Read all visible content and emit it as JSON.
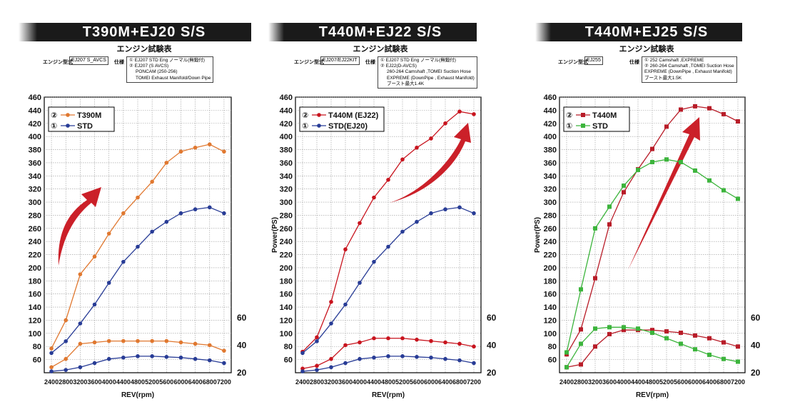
{
  "chart_data": [
    {
      "type": "line",
      "title": "T390M+EJ20 S/S",
      "subtitle": "エンジン試験表",
      "engine_label": "エンジン型式",
      "engine_value": "EJ207 S_AVCS",
      "spec_label": "仕様",
      "spec_lines": [
        "① EJ207 STD Eng ノーマル(無鍛付)",
        "② EJ207 (S AVCS)",
        "PONCAM (250-256)",
        "TOMEI Exhaust Manifold/Down Pipe"
      ],
      "xlabel": "REV(rpm)",
      "ylabel": "",
      "x": [
        2400,
        2800,
        3200,
        3600,
        4000,
        4400,
        4800,
        5200,
        5600,
        6000,
        6400,
        6800,
        7200
      ],
      "x_ticks": [
        "2400",
        "2800",
        "3200",
        "3600",
        "4000",
        "4400",
        "4800",
        "5200",
        "5600",
        "6000",
        "6400",
        "6800",
        "7200"
      ],
      "ylim": [
        40,
        460
      ],
      "y_ticks": [
        "460",
        "440",
        "420",
        "400",
        "380",
        "360",
        "340",
        "320",
        "300",
        "280",
        "260",
        "240",
        "220",
        "200",
        "180",
        "160",
        "140",
        "120",
        "100",
        "80",
        "60"
      ],
      "y2lim": [
        20,
        220
      ],
      "y2_ticks": [
        "60",
        "40",
        "20"
      ],
      "marker": "circle",
      "arrow_color": "#c8141e",
      "legend": [
        {
          "num": "②",
          "name": "T390M",
          "color": "#e07830"
        },
        {
          "num": "①",
          "name": "STD",
          "color": "#283c96"
        }
      ],
      "series": [
        {
          "name": "T390M",
          "axis": "power",
          "color": "#e07830",
          "values": [
            77,
            120,
            190,
            217,
            252,
            283,
            307,
            331,
            360,
            377,
            383,
            388,
            377
          ]
        },
        {
          "name": "STD",
          "axis": "power",
          "color": "#283c96",
          "values": [
            70,
            88,
            115,
            144,
            177,
            209,
            232,
            255,
            270,
            283,
            289,
            292,
            283
          ]
        },
        {
          "name": "T390M torque",
          "axis": "torque",
          "color": "#e07830",
          "values": [
            24,
            30,
            41,
            42,
            43,
            43,
            43,
            43,
            43,
            42,
            41,
            40,
            36
          ]
        },
        {
          "name": "STD torque",
          "axis": "torque",
          "color": "#283c96",
          "values": [
            21,
            22,
            24,
            27,
            30,
            31,
            32,
            32,
            31.5,
            31,
            30,
            29,
            27
          ]
        }
      ]
    },
    {
      "type": "line",
      "title": "T440M+EJ22 S/S",
      "subtitle": "エンジン試験表",
      "engine_label": "エンジン型式",
      "engine_value": "EJ207/EJ22KIT",
      "spec_label": "仕様",
      "spec_lines": [
        "① EJ207 STD Eng ノーマル(無鍛付)",
        "② EJ22(D-AVCS)",
        "260-264 Camshaft ,TOMEI Suction Hose",
        "EXPREME (DownPipe , Exhaust Manifold)",
        "ブースト最大1.4K"
      ],
      "xlabel": "REV(rpm)",
      "ylabel": "Power(PS)",
      "x": [
        2400,
        2800,
        3200,
        3600,
        4000,
        4400,
        4800,
        5200,
        5600,
        6000,
        6400,
        6800,
        7200
      ],
      "x_ticks": [
        "2400",
        "2800",
        "3200",
        "3600",
        "4000",
        "4400",
        "4800",
        "5200",
        "5600",
        "6000",
        "6400",
        "6800",
        "7200"
      ],
      "ylim": [
        40,
        460
      ],
      "y_ticks": [
        "460",
        "440",
        "420",
        "400",
        "380",
        "360",
        "340",
        "320",
        "300",
        "280",
        "260",
        "240",
        "220",
        "200",
        "180",
        "160",
        "140",
        "120",
        "100",
        "80",
        "60"
      ],
      "y2lim": [
        20,
        220
      ],
      "y2_ticks": [
        "60",
        "40",
        "20"
      ],
      "marker": "circle",
      "arrow_color": "#c8141e",
      "legend": [
        {
          "num": "②",
          "name": "T440M (EJ22)",
          "color": "#c8141e"
        },
        {
          "num": "①",
          "name": "STD(EJ20)",
          "color": "#283c96"
        }
      ],
      "series": [
        {
          "name": "T440M (EJ22)",
          "axis": "power",
          "color": "#c8141e",
          "values": [
            72,
            94,
            148,
            228,
            268,
            307,
            334,
            365,
            383,
            397,
            420,
            438,
            434
          ]
        },
        {
          "name": "STD(EJ20)",
          "axis": "power",
          "color": "#283c96",
          "values": [
            70,
            88,
            115,
            144,
            177,
            209,
            232,
            255,
            270,
            283,
            289,
            292,
            283
          ]
        },
        {
          "name": "T440M torque",
          "axis": "torque",
          "color": "#c8141e",
          "values": [
            23,
            25,
            30,
            40,
            42,
            45,
            45,
            45,
            44,
            43,
            42,
            41,
            39
          ]
        },
        {
          "name": "STD torque",
          "axis": "torque",
          "color": "#283c96",
          "values": [
            21,
            22,
            24,
            27,
            30,
            31,
            32,
            32,
            31.5,
            31,
            30,
            29,
            27
          ]
        }
      ]
    },
    {
      "type": "line",
      "title": "T440M+EJ25 S/S",
      "subtitle": "エンジン試験表",
      "engine_label": "エンジン型式",
      "engine_value": "EJ255",
      "spec_label": "仕様",
      "spec_lines": [
        "① 252 Camshaft ,EXPREME",
        "② 260-264 Camshaft ,TOMEI Suction Hose",
        "EXPREME (DownPipe , Exhaust Manifold)",
        "ブースト最大1.5K"
      ],
      "xlabel": "REV(rpm)",
      "ylabel": "Power(PS)",
      "x": [
        2400,
        2800,
        3200,
        3600,
        4000,
        4400,
        4800,
        5200,
        5600,
        6000,
        6400,
        6800,
        7200
      ],
      "x_ticks": [
        "2400",
        "2800",
        "3200",
        "3600",
        "4000",
        "4400",
        "4800",
        "5200",
        "5600",
        "6000",
        "6400",
        "6800",
        "7200"
      ],
      "ylim": [
        40,
        460
      ],
      "y_ticks": [
        "460",
        "440",
        "420",
        "400",
        "380",
        "360",
        "340",
        "320",
        "300",
        "280",
        "260",
        "240",
        "220",
        "200",
        "180",
        "160",
        "140",
        "120",
        "100",
        "80",
        "60"
      ],
      "y2lim": [
        20,
        220
      ],
      "y2_ticks": [
        "60",
        "40",
        "20"
      ],
      "marker": "square",
      "arrow_color": "#c8141e",
      "legend": [
        {
          "num": "②",
          "name": "T440M",
          "color": "#b81c28"
        },
        {
          "num": "①",
          "name": "STD",
          "color": "#3cb43c"
        }
      ],
      "series": [
        {
          "name": "T440M",
          "axis": "power",
          "color": "#b81c28",
          "values": [
            68,
            106,
            184,
            266,
            315,
            350,
            381,
            415,
            441,
            446,
            443,
            434,
            423
          ]
        },
        {
          "name": "STD",
          "axis": "power",
          "color": "#3cb43c",
          "values": [
            71,
            167,
            260,
            293,
            325,
            349,
            361,
            365,
            361,
            348,
            333,
            318,
            305
          ]
        },
        {
          "name": "T440M torque",
          "axis": "torque",
          "color": "#b81c28",
          "values": [
            24,
            26,
            39,
            48,
            51,
            51,
            51,
            50,
            49,
            47,
            45,
            42,
            39
          ]
        },
        {
          "name": "STD torque",
          "axis": "torque",
          "color": "#3cb43c",
          "values": [
            24,
            41,
            52,
            53,
            53,
            52,
            49,
            45,
            41,
            37,
            33,
            30,
            28
          ]
        }
      ]
    }
  ]
}
